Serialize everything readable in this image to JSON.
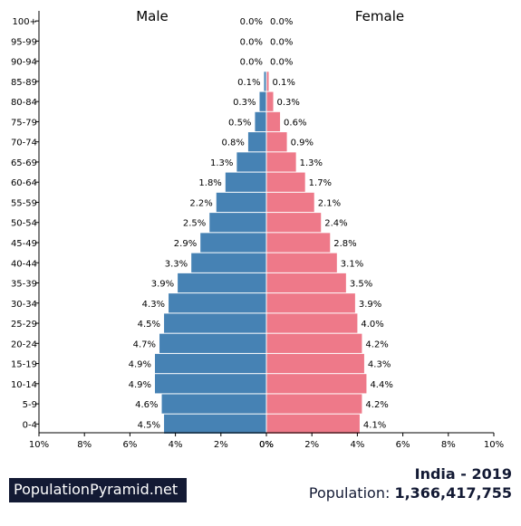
{
  "chart_data": {
    "type": "bar",
    "orientation": "horizontal-pyramid",
    "categories": [
      "100+",
      "95-99",
      "90-94",
      "85-89",
      "80-84",
      "75-79",
      "70-74",
      "65-69",
      "60-64",
      "55-59",
      "50-54",
      "45-49",
      "40-44",
      "35-39",
      "30-34",
      "25-29",
      "20-24",
      "15-19",
      "10-14",
      "5-9",
      "0-4"
    ],
    "series": [
      {
        "name": "Male",
        "color": "#4682b4",
        "values": [
          0.0,
          0.0,
          0.0,
          0.1,
          0.3,
          0.5,
          0.8,
          1.3,
          1.8,
          2.2,
          2.5,
          2.9,
          3.3,
          3.9,
          4.3,
          4.5,
          4.7,
          4.9,
          4.9,
          4.6,
          4.5
        ]
      },
      {
        "name": "Female",
        "color": "#ee7989",
        "values": [
          0.0,
          0.0,
          0.0,
          0.1,
          0.3,
          0.6,
          0.9,
          1.3,
          1.7,
          2.1,
          2.4,
          2.8,
          3.1,
          3.5,
          3.9,
          4.0,
          4.2,
          4.3,
          4.4,
          4.2,
          4.1
        ]
      }
    ],
    "xlim": [
      0,
      10
    ],
    "xticks": [
      "10%",
      "8%",
      "6%",
      "4%",
      "2%",
      "0%",
      "0%",
      "2%",
      "4%",
      "6%",
      "8%",
      "10%"
    ],
    "unit": "%",
    "grid": false
  },
  "branding": {
    "site": "PopulationPyramid.net"
  },
  "info": {
    "country_year": "India - 2019",
    "population_label": "Population:",
    "population_value": "1,366,417,755"
  }
}
